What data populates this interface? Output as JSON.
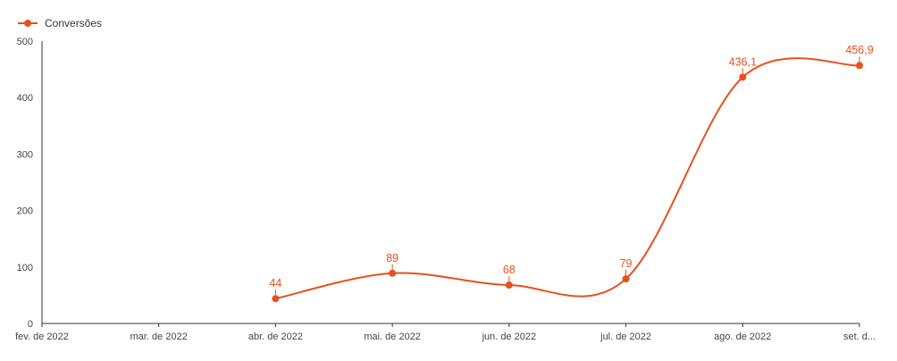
{
  "legend": {
    "label": "Conversões",
    "position": "top-left"
  },
  "chart_data": {
    "type": "line",
    "categories": [
      "fev. de 2022",
      "mar. de 2022",
      "abr. de 2022",
      "mai. de 2022",
      "jun. de 2022",
      "jul. de 2022",
      "ago. de 2022",
      "set. d..."
    ],
    "series": [
      {
        "name": "Conversões",
        "color": "#e8501e",
        "values": [
          null,
          null,
          44,
          89,
          68,
          79,
          436.1,
          456.9
        ],
        "labels": [
          "",
          "",
          "44",
          "89",
          "68",
          "79",
          "436,1",
          "456,9"
        ]
      }
    ],
    "y_ticks": [
      "0",
      "100",
      "200",
      "300",
      "400",
      "500"
    ],
    "ylim": [
      0,
      500
    ],
    "grid": false,
    "smooth": true
  }
}
